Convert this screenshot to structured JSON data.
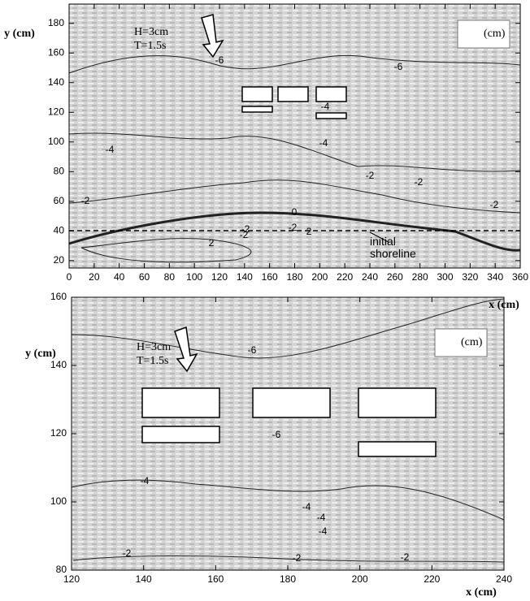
{
  "chart_data": [
    {
      "type": "contour",
      "xlabel": "x (cm)",
      "ylabel": "y (cm)",
      "xlim": [
        0,
        360
      ],
      "ylim": [
        15,
        193
      ],
      "xticks": [
        0,
        20,
        40,
        60,
        80,
        100,
        120,
        140,
        160,
        180,
        200,
        220,
        240,
        260,
        280,
        300,
        320,
        340,
        360
      ],
      "yticks": [
        20,
        40,
        60,
        80,
        100,
        120,
        140,
        160,
        180
      ],
      "annotations": [
        "H=3cm",
        "T=1.5s",
        "(cm)",
        "initial shoreline"
      ],
      "contour_labels": [
        "-6",
        "-6",
        "-4",
        "-4",
        "-4",
        "-2",
        "-2",
        "-2",
        "-2",
        "-2",
        "0",
        "2",
        "2",
        "-2",
        "-2"
      ]
    },
    {
      "type": "contour",
      "xlabel": "x (cm)",
      "ylabel": "y (cm)",
      "xlim": [
        120,
        240
      ],
      "ylim": [
        80,
        160
      ],
      "xticks": [
        120,
        140,
        160,
        180,
        200,
        220,
        240
      ],
      "yticks": [
        80,
        100,
        120,
        140,
        160
      ],
      "annotations": [
        "H=3cm",
        "T=1.5s",
        "(cm)"
      ],
      "contour_labels": [
        "-6",
        "-6",
        "-4",
        "-4",
        "-4",
        "-4",
        "-2",
        "-2",
        "-2"
      ]
    }
  ]
}
